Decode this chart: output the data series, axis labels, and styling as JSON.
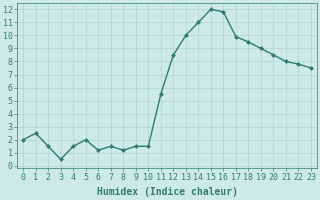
{
  "x": [
    0,
    1,
    2,
    3,
    4,
    5,
    6,
    7,
    8,
    9,
    10,
    11,
    12,
    13,
    14,
    15,
    16,
    17,
    18,
    19,
    20,
    21,
    22,
    23
  ],
  "y": [
    2,
    2.5,
    1.5,
    0.5,
    1.5,
    2,
    1.2,
    1.5,
    1.2,
    1.5,
    1.5,
    5.5,
    8.5,
    10,
    11,
    12,
    11.8,
    9.9,
    9.5,
    9,
    8.5,
    8,
    7.8,
    7.5
  ],
  "line_color": "#2e7d6e",
  "marker": "D",
  "marker_size": 2,
  "bg_color": "#ceeae7",
  "grid_color": "#b0d4d0",
  "xlabel": "Humidex (Indice chaleur)",
  "xlabel_fontsize": 7,
  "ylabel_ticks": [
    0,
    1,
    2,
    3,
    4,
    5,
    6,
    7,
    8,
    9,
    10,
    11,
    12
  ],
  "xlim": [
    -0.5,
    23.5
  ],
  "ylim": [
    -0.2,
    12.5
  ],
  "xticks": [
    0,
    1,
    2,
    3,
    4,
    5,
    6,
    7,
    8,
    9,
    10,
    11,
    12,
    13,
    14,
    15,
    16,
    17,
    18,
    19,
    20,
    21,
    22,
    23
  ],
  "tick_color": "#2e7d6e",
  "tick_fontsize": 6,
  "line_width": 1.0
}
